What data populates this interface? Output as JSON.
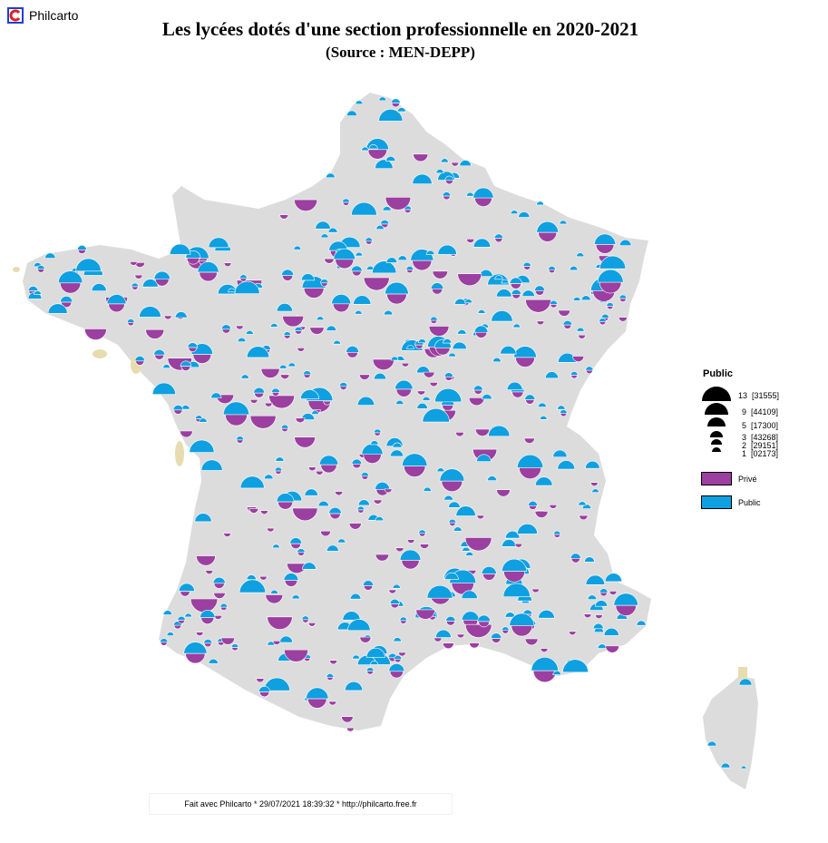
{
  "app": {
    "name": "Philcarto"
  },
  "title": "Les lycées dotés d'une section professionnelle en 2020-2021",
  "subtitle": "(Source : MEN-DEPP)",
  "legend": {
    "title": "Public",
    "sizes": [
      {
        "value": "13",
        "code": "[31555]"
      },
      {
        "value": "9",
        "code": "[44109]"
      },
      {
        "value": "5",
        "code": "[17300]"
      },
      {
        "value": "3",
        "code": "[43268]"
      },
      {
        "value": "2",
        "code": "[29151]"
      },
      {
        "value": "1",
        "code": "[02173]"
      }
    ],
    "categories": [
      {
        "label": "Privé",
        "color": "#9b3fa0"
      },
      {
        "label": "Public",
        "color": "#0ea0e0"
      }
    ]
  },
  "colors": {
    "land": "#dcdcdc",
    "private": "#9b3fa0",
    "public": "#0ea0e0",
    "other": "#1a2fc0",
    "sand": "#e6dcb0"
  },
  "footer": "Fait avec Philcarto * 29/07/2021 18:39:32 * http://philcarto.free.fr"
}
